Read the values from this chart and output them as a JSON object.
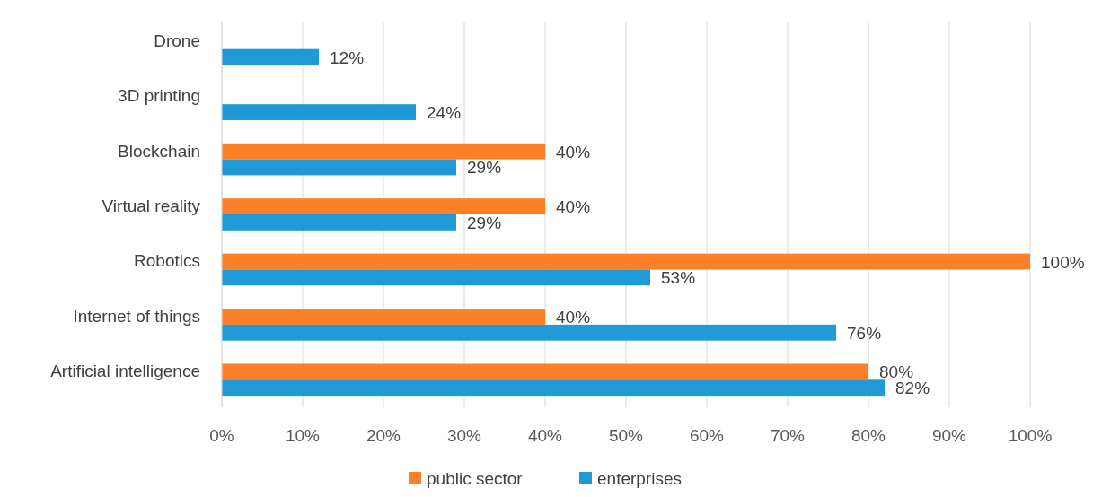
{
  "chart_data": {
    "type": "bar",
    "orientation": "horizontal",
    "categories": [
      "Drone",
      "3D printing",
      "Blockchain",
      "Virtual reality",
      "Robotics",
      "Internet of things",
      "Artificial intelligence"
    ],
    "series": [
      {
        "name": "public sector",
        "color": "#fd7f28",
        "values": [
          null,
          null,
          40,
          40,
          100,
          40,
          80
        ],
        "value_labels": [
          null,
          null,
          "40%",
          "40%",
          "100%",
          "40%",
          "80%"
        ]
      },
      {
        "name": "enterprises",
        "color": "#1f9ad6",
        "values": [
          12,
          24,
          29,
          29,
          53,
          76,
          82
        ],
        "value_labels": [
          "12%",
          "24%",
          "29%",
          "29%",
          "53%",
          "76%",
          "82%"
        ]
      }
    ],
    "xlim": [
      0,
      100
    ],
    "xticks": [
      {
        "value": 0,
        "label": "0%"
      },
      {
        "value": 10,
        "label": "10%"
      },
      {
        "value": 20,
        "label": "20%"
      },
      {
        "value": 30,
        "label": "30%"
      },
      {
        "value": 40,
        "label": "40%"
      },
      {
        "value": 50,
        "label": "50%"
      },
      {
        "value": 60,
        "label": "60%"
      },
      {
        "value": 70,
        "label": "70%"
      },
      {
        "value": 80,
        "label": "80%"
      },
      {
        "value": 90,
        "label": "90%"
      },
      {
        "value": 100,
        "label": "100%"
      }
    ],
    "grid": "x",
    "legend": "bottom"
  }
}
